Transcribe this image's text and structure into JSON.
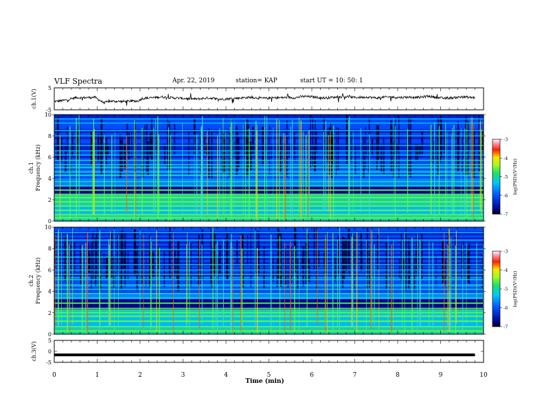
{
  "header": {
    "title": "VLF Spectra",
    "date": "Apr. 22, 2019",
    "station": "station= KAP",
    "start": "start  UT =   10: 50: 1"
  },
  "chart_data": [
    {
      "type": "line",
      "panel": "ch1-waveform",
      "ylabel": "ch.1(V)",
      "ylim": [
        -5,
        5
      ],
      "ytick_labels": [
        "5",
        "-5"
      ],
      "xlim": [
        0,
        10
      ],
      "line_color": "#000000",
      "series": [
        {
          "x": [
            0.0,
            0.2,
            0.3,
            0.5,
            0.7,
            0.95,
            1.15,
            1.3,
            1.6,
            1.95,
            2.05,
            2.3,
            2.5,
            2.8,
            3.0,
            3.3,
            3.6,
            3.9,
            4.1,
            4.4,
            4.6,
            4.9,
            5.1,
            5.4,
            5.6,
            5.8,
            6.0,
            6.3,
            6.5,
            6.8,
            7.0,
            7.3,
            7.5,
            7.8,
            8.0,
            8.3,
            8.5,
            8.7,
            8.9,
            9.1,
            9.3,
            9.5,
            9.8
          ],
          "values": [
            -1.2,
            -0.8,
            -0.5,
            0.6,
            0.5,
            0.7,
            -1.8,
            -1.1,
            -1.2,
            -1.0,
            0.2,
            0.5,
            0.9,
            0.4,
            0.2,
            -0.1,
            0.4,
            -0.2,
            0.1,
            0.5,
            0.6,
            0.2,
            0.4,
            0.6,
            0.5,
            1.1,
            0.9,
            0.4,
            0.7,
            1.0,
            0.6,
            0.8,
            0.4,
            0.9,
            0.6,
            0.8,
            0.6,
            1.2,
            0.7,
            0.2,
            0.5,
            0.9,
            0.5
          ]
        }
      ]
    },
    {
      "type": "heatmap",
      "panel": "ch1-spectrogram",
      "ylabel": "ch.1\nFrequency (kHz)",
      "ylim": [
        0,
        10
      ],
      "yticks": [
        0,
        2,
        4,
        6,
        8,
        10
      ],
      "xlim": [
        0,
        10
      ],
      "colorbar": {
        "label": "log(PSD)(V²/Hz)",
        "range": [
          -7,
          -3
        ],
        "ticks": [
          "-3",
          "-4",
          "-5",
          "-6",
          "-7"
        ]
      },
      "horizontal_bands_khz": [
        0.3,
        0.6,
        1.0,
        1.4,
        1.8,
        2.2,
        2.5,
        2.9,
        3.3,
        3.7,
        4.3,
        4.6,
        5.0,
        5.3,
        5.7,
        6.2,
        6.6,
        7.1,
        8.0,
        8.5,
        9.2,
        9.6
      ]
    },
    {
      "type": "heatmap",
      "panel": "ch2-spectrogram",
      "ylabel": "ch.2\nFrequency (kHz)",
      "ylim": [
        0,
        10
      ],
      "yticks": [
        0,
        2,
        4,
        6,
        8,
        10
      ],
      "xlim": [
        0,
        10
      ],
      "colorbar": {
        "label": "log(PSD)(V²/Hz)",
        "range": [
          -7,
          -3
        ],
        "ticks": [
          "-3",
          "-4",
          "-5",
          "-6",
          "-7"
        ]
      },
      "horizontal_bands_khz": [
        0.3,
        0.7,
        1.2,
        1.7,
        2.0,
        2.4,
        2.9,
        3.4,
        3.8,
        4.2,
        4.6,
        5.1,
        5.6,
        6.0,
        6.5,
        7.2,
        7.9,
        8.8,
        9.5
      ]
    },
    {
      "type": "line",
      "panel": "ch3-waveform",
      "ylabel": "ch.3(V)",
      "ylim": [
        -5,
        5
      ],
      "ytick_labels": [
        "5",
        "0",
        "-5"
      ],
      "xlabel": "Time  (min)",
      "xlim": [
        0,
        10
      ],
      "xticks": [
        0,
        1,
        2,
        3,
        4,
        5,
        6,
        7,
        8,
        9,
        10
      ],
      "series": [
        {
          "x": [
            0,
            9.8
          ],
          "values": [
            -1.6,
            -1.6
          ]
        }
      ]
    }
  ]
}
